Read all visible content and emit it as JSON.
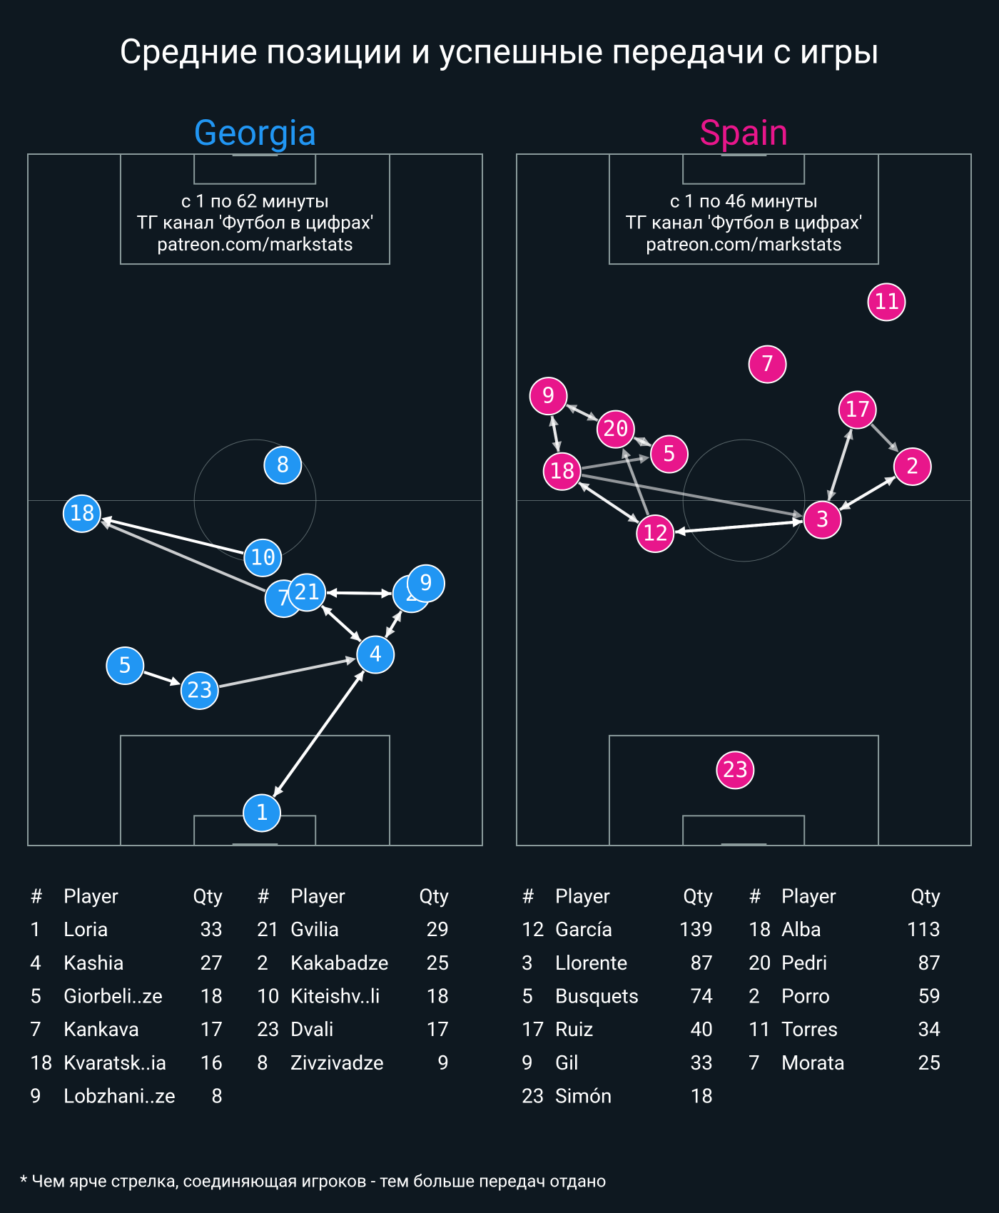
{
  "title": "Средние позиции и успешные передачи с игры",
  "footnote": "* Чем ярче стрелка, соединяющая игроков - тем больше передач отдано",
  "teams": [
    {
      "name": "Georgia",
      "color": "#2196f3",
      "info": [
        "с 1 по 62 минуты",
        "ТГ канал 'Футбол в цифрах'",
        "patreon.com/markstats"
      ],
      "players": [
        {
          "number": 1,
          "x": 51.5,
          "y": 95.3
        },
        {
          "number": 4,
          "x": 76.5,
          "y": 72.4
        },
        {
          "number": 5,
          "x": 21.4,
          "y": 74.0
        },
        {
          "number": 23,
          "x": 37.8,
          "y": 77.6
        },
        {
          "number": 7,
          "x": 56.3,
          "y": 64.3
        },
        {
          "number": 21,
          "x": 61.4,
          "y": 63.4
        },
        {
          "number": 2,
          "x": 84.4,
          "y": 63.6
        },
        {
          "number": 9,
          "x": 87.6,
          "y": 62.1
        },
        {
          "number": 10,
          "x": 51.7,
          "y": 58.4
        },
        {
          "number": 18,
          "x": 11.9,
          "y": 52.0
        },
        {
          "number": 8,
          "x": 56.1,
          "y": 45.0
        }
      ],
      "passes": [
        {
          "from": 10,
          "to": 18,
          "weight": 1
        },
        {
          "from": 7,
          "to": 18,
          "weight": 0.7
        },
        {
          "from": 21,
          "to": 2,
          "weight": 1
        },
        {
          "from": 2,
          "to": 21,
          "weight": 1
        },
        {
          "from": 21,
          "to": 4,
          "weight": 0.9
        },
        {
          "from": 4,
          "to": 21,
          "weight": 0.9
        },
        {
          "from": 4,
          "to": 2,
          "weight": 0.8
        },
        {
          "from": 2,
          "to": 4,
          "weight": 0.8
        },
        {
          "from": 5,
          "to": 23,
          "weight": 1
        },
        {
          "from": 23,
          "to": 4,
          "weight": 0.75
        },
        {
          "from": 1,
          "to": 4,
          "weight": 0.9
        },
        {
          "from": 4,
          "to": 1,
          "weight": 0.9
        }
      ],
      "tables": [
        {
          "headers": [
            "#",
            "Player",
            "Qty"
          ],
          "rows": [
            [
              1,
              "Loria",
              33
            ],
            [
              4,
              "Kashia",
              27
            ],
            [
              5,
              "Giorbeli..ze",
              18
            ],
            [
              7,
              "Kankava",
              17
            ],
            [
              18,
              "Kvaratsk..ia",
              16
            ],
            [
              9,
              "Lobzhani..ze",
              8
            ]
          ]
        },
        {
          "headers": [
            "#",
            "Player",
            "Qty"
          ],
          "rows": [
            [
              21,
              "Gvilia",
              29
            ],
            [
              2,
              "Kakabadze",
              25
            ],
            [
              10,
              "Kiteishv..li",
              18
            ],
            [
              23,
              "Dvali",
              17
            ],
            [
              8,
              "Zivzivadze",
              9
            ]
          ]
        }
      ]
    },
    {
      "name": "Spain",
      "color": "#e8168b",
      "info": [
        "с 1 по 46 минуты",
        "ТГ канал 'Футбол в цифрах'",
        "patreon.com/markstats"
      ],
      "players": [
        {
          "number": 11,
          "x": 81.4,
          "y": 21.4
        },
        {
          "number": 7,
          "x": 55.2,
          "y": 30.4
        },
        {
          "number": 9,
          "x": 7.0,
          "y": 35.0
        },
        {
          "number": 20,
          "x": 21.8,
          "y": 39.8
        },
        {
          "number": 5,
          "x": 33.6,
          "y": 43.4
        },
        {
          "number": 17,
          "x": 75.0,
          "y": 37.0
        },
        {
          "number": 2,
          "x": 87.1,
          "y": 45.2
        },
        {
          "number": 18,
          "x": 10.0,
          "y": 45.9
        },
        {
          "number": 3,
          "x": 67.3,
          "y": 52.9
        },
        {
          "number": 12,
          "x": 30.5,
          "y": 54.9
        },
        {
          "number": 23,
          "x": 48.1,
          "y": 89.1
        }
      ],
      "passes": [
        {
          "from": 9,
          "to": 20,
          "weight": 0.5
        },
        {
          "from": 20,
          "to": 9,
          "weight": 0.5
        },
        {
          "from": 9,
          "to": 18,
          "weight": 0.6
        },
        {
          "from": 18,
          "to": 9,
          "weight": 0.6
        },
        {
          "from": 20,
          "to": 5,
          "weight": 0.5
        },
        {
          "from": 5,
          "to": 20,
          "weight": 0.5
        },
        {
          "from": 18,
          "to": 5,
          "weight": 0.4
        },
        {
          "from": 18,
          "to": 3,
          "weight": 0.4
        },
        {
          "from": 12,
          "to": 20,
          "weight": 0.5
        },
        {
          "from": 12,
          "to": 18,
          "weight": 0.7
        },
        {
          "from": 18,
          "to": 12,
          "weight": 0.7
        },
        {
          "from": 12,
          "to": 3,
          "weight": 1
        },
        {
          "from": 3,
          "to": 12,
          "weight": 1
        },
        {
          "from": 17,
          "to": 3,
          "weight": 0.5
        },
        {
          "from": 3,
          "to": 17,
          "weight": 0.5
        },
        {
          "from": 17,
          "to": 2,
          "weight": 0.5
        },
        {
          "from": 3,
          "to": 2,
          "weight": 0.8
        },
        {
          "from": 2,
          "to": 3,
          "weight": 0.8
        }
      ],
      "tables": [
        {
          "headers": [
            "#",
            "Player",
            "Qty"
          ],
          "rows": [
            [
              12,
              "García",
              139
            ],
            [
              3,
              "Llorente",
              87
            ],
            [
              5,
              "Busquets",
              74
            ],
            [
              17,
              "Ruiz",
              40
            ],
            [
              9,
              "Gil",
              33
            ],
            [
              23,
              "Simón",
              18
            ]
          ]
        },
        {
          "headers": [
            "#",
            "Player",
            "Qty"
          ],
          "rows": [
            [
              18,
              "Alba",
              113
            ],
            [
              20,
              "Pedri",
              87
            ],
            [
              2,
              "Porro",
              59
            ],
            [
              11,
              "Torres",
              34
            ],
            [
              7,
              "Morata",
              25
            ]
          ]
        }
      ]
    }
  ]
}
